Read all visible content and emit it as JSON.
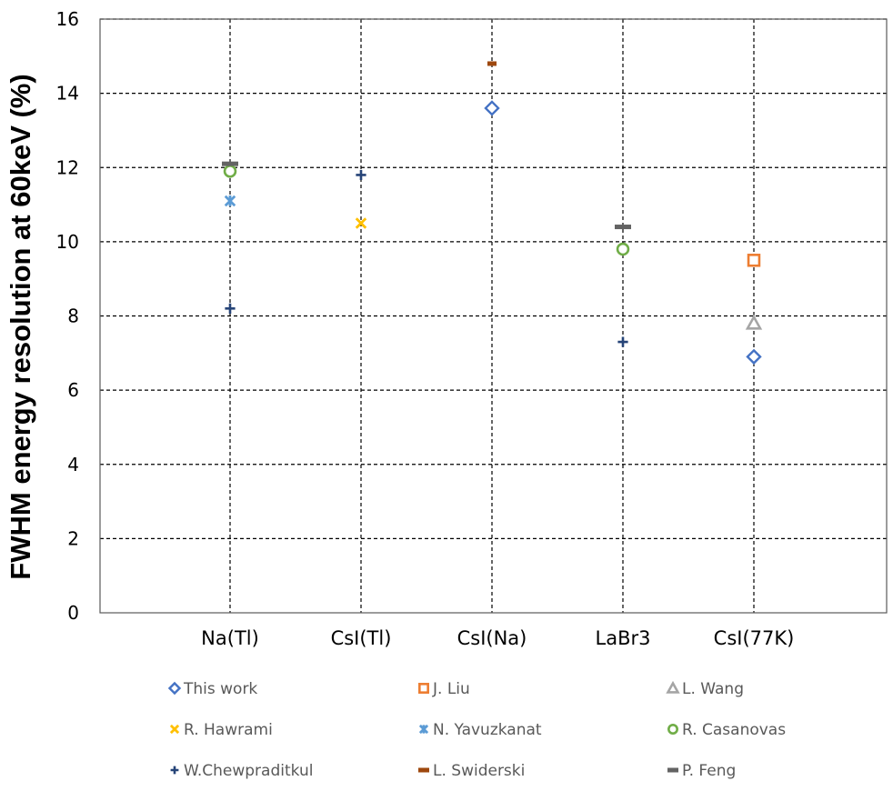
{
  "chart_data": {
    "type": "scatter",
    "title": "",
    "ylabel": "FWHM energy resolution at 60keV (%)",
    "xlabel": "",
    "categories": [
      "Na(Tl)",
      "CsI(Tl)",
      "CsI(Na)",
      "LaBr3",
      "CsI(77K)"
    ],
    "ylim": [
      0,
      16
    ],
    "yticks": [
      0,
      2,
      4,
      6,
      8,
      10,
      12,
      14,
      16
    ],
    "grid": true,
    "legend_position": "bottom",
    "series": [
      {
        "name": "This work",
        "marker": "diamond",
        "color": "#4472C4",
        "points": [
          {
            "x": "CsI(Na)",
            "y": 13.6
          },
          {
            "x": "CsI(77K)",
            "y": 6.9
          }
        ]
      },
      {
        "name": "J. Liu",
        "marker": "square",
        "color": "#ED7D31",
        "points": [
          {
            "x": "CsI(77K)",
            "y": 9.5
          }
        ]
      },
      {
        "name": "L. Wang",
        "marker": "triangle",
        "color": "#A5A5A5",
        "points": [
          {
            "x": "CsI(77K)",
            "y": 7.8
          }
        ]
      },
      {
        "name": "R. Hawrami",
        "marker": "x",
        "color": "#FFC000",
        "points": [
          {
            "x": "CsI(Tl)",
            "y": 10.5
          }
        ]
      },
      {
        "name": "N. Yavuzkanat",
        "marker": "star",
        "color": "#5B9BD5",
        "points": [
          {
            "x": "Na(Tl)",
            "y": 11.1
          }
        ]
      },
      {
        "name": "R. Casanovas",
        "marker": "circle",
        "color": "#70AD47",
        "points": [
          {
            "x": "Na(Tl)",
            "y": 11.9
          },
          {
            "x": "LaBr3",
            "y": 9.8
          }
        ]
      },
      {
        "name": "W.Chewpraditkul",
        "marker": "plus",
        "color": "#264478",
        "points": [
          {
            "x": "Na(Tl)",
            "y": 8.2
          },
          {
            "x": "CsI(Tl)",
            "y": 11.8
          },
          {
            "x": "LaBr3",
            "y": 7.3
          }
        ]
      },
      {
        "name": "L. Swiderski",
        "marker": "dash",
        "color": "#9E480E",
        "points": [
          {
            "x": "CsI(Na)",
            "y": 14.8
          }
        ]
      },
      {
        "name": "P. Feng",
        "marker": "dash",
        "color": "#636363",
        "points": [
          {
            "x": "Na(Tl)",
            "y": 12.1
          },
          {
            "x": "LaBr3",
            "y": 10.4
          }
        ]
      }
    ]
  }
}
